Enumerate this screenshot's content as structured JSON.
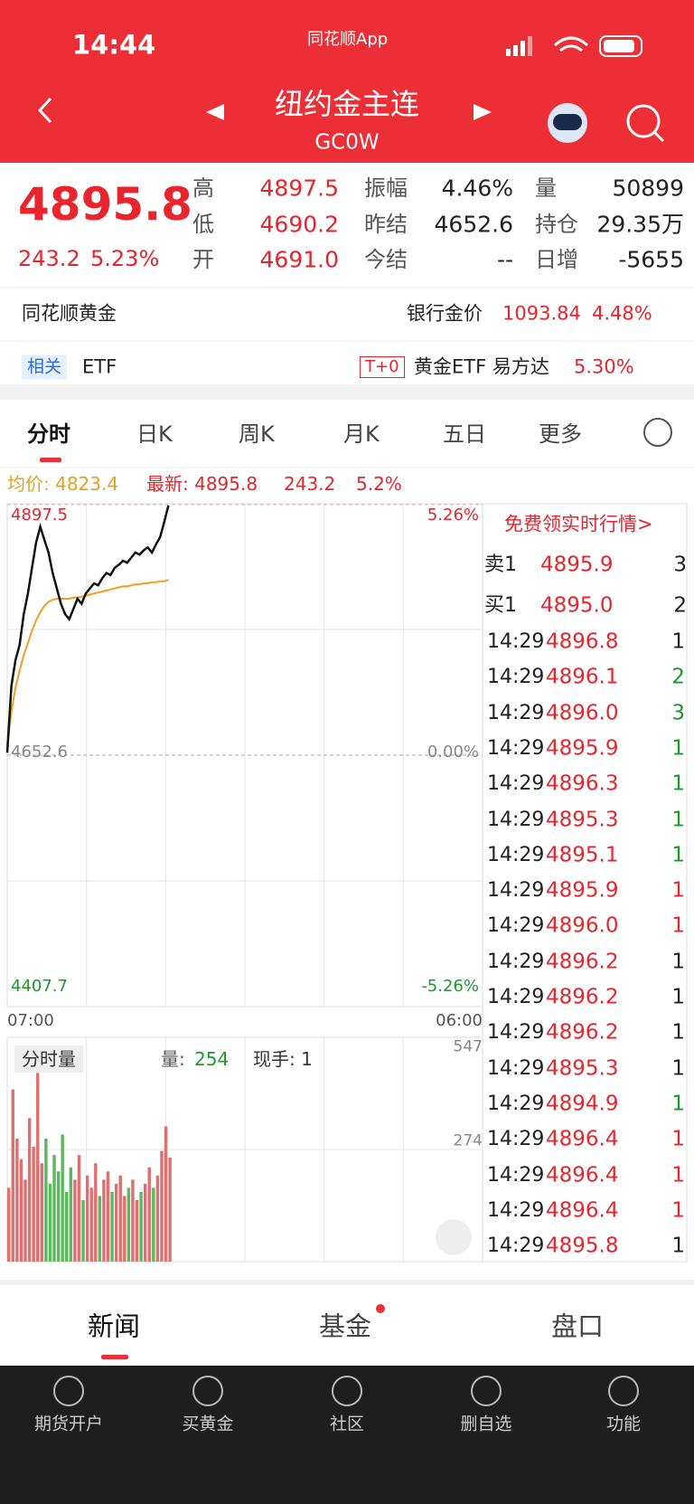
{
  "status_bar": {
    "time": "14:44",
    "app": "同花顺App"
  },
  "header": {
    "title": "纽约金主连",
    "code": "GC0W"
  },
  "quote": {
    "price": "4895.8",
    "change": "243.2",
    "change_pct": "5.23%",
    "stats": [
      [
        {
          "label": "高",
          "value": "4897.5",
          "color": "#e8242c"
        },
        {
          "label": "振幅",
          "value": "4.46%",
          "color": "#222222"
        },
        {
          "label": "量",
          "value": "50899",
          "color": "#222222"
        }
      ],
      [
        {
          "label": "低",
          "value": "4690.2",
          "color": "#e8242c"
        },
        {
          "label": "昨结",
          "value": "4652.6",
          "color": "#222222"
        },
        {
          "label": "持仓",
          "value": "29.35万",
          "color": "#222222"
        }
      ],
      [
        {
          "label": "开",
          "value": "4691.0",
          "color": "#e8242c"
        },
        {
          "label": "今结",
          "value": "--",
          "color": "#222222"
        },
        {
          "label": "日增",
          "value": "-5655",
          "color": "#222222"
        }
      ]
    ]
  },
  "bank_row": {
    "left": "同花顺黄金",
    "label": "银行金价",
    "price": "1093.84",
    "pct": "4.48%"
  },
  "etf_row": {
    "tag": "相关",
    "label": "ETF",
    "badge": "T+0",
    "name": "黄金ETF 易方达",
    "pct": "5.30%"
  },
  "tabs": [
    "分时",
    "日K",
    "周K",
    "月K",
    "五日",
    "更多"
  ],
  "chart_header": {
    "avg": "均价: 4823.4",
    "latest": "最新: 4895.8",
    "change": "243.2",
    "pct": "5.2%"
  },
  "intraday": {
    "top": "4897.5",
    "mid": "4652.6",
    "bottom": "4407.7",
    "top_pct": "5.26%",
    "mid_pct": "0.00%",
    "bottom_pct": "-5.26%",
    "start": "07:00",
    "end": "06:00",
    "ylim": [
      4407.7,
      4897.5
    ],
    "xlim": [
      0,
      23
    ],
    "x": [
      0,
      0.2,
      0.4,
      0.6,
      0.8,
      1,
      1.2,
      1.4,
      1.6,
      1.8,
      2,
      2.2,
      2.4,
      2.6,
      2.8,
      3,
      3.2,
      3.4,
      3.6,
      3.8,
      4,
      4.2,
      4.4,
      4.6,
      4.8,
      5,
      5.2,
      5.4,
      5.6,
      5.8,
      6,
      6.2,
      6.4,
      6.6,
      6.8,
      7,
      7.2,
      7.4,
      7.6,
      7.8
    ],
    "prices": [
      4655,
      4720,
      4745,
      4760,
      4790,
      4810,
      4835,
      4860,
      4875,
      4862,
      4850,
      4830,
      4815,
      4800,
      4790,
      4785,
      4795,
      4805,
      4800,
      4810,
      4815,
      4820,
      4818,
      4825,
      4830,
      4828,
      4835,
      4838,
      4842,
      4840,
      4845,
      4850,
      4848,
      4852,
      4855,
      4850,
      4858,
      4865,
      4880,
      4895.8
    ],
    "avg": [
      4660,
      4695,
      4718,
      4735,
      4750,
      4762,
      4774,
      4784,
      4792,
      4798,
      4802,
      4804,
      4805,
      4805,
      4805,
      4805,
      4806,
      4806,
      4807,
      4808,
      4809,
      4810,
      4811,
      4812,
      4813,
      4814,
      4815,
      4816,
      4817,
      4817,
      4818,
      4819,
      4819,
      4820,
      4820,
      4821,
      4821,
      4822,
      4822,
      4823.4
    ],
    "volume": [
      180,
      420,
      300,
      250,
      200,
      350,
      280,
      460,
      240,
      300,
      190,
      260,
      220,
      310,
      170,
      230,
      200,
      260,
      150,
      210,
      180,
      240,
      160,
      200,
      220,
      170,
      190,
      210,
      160,
      180,
      200,
      150,
      170,
      190,
      230,
      180,
      210,
      270,
      330,
      254
    ],
    "vol_ylim": [
      0,
      547
    ],
    "vol_top": "547",
    "vol_mid": "274",
    "vol_title": "分时量",
    "vol_label": "量:",
    "vol_value": "254",
    "hand": "现手: 1"
  },
  "order_book": {
    "promo": "免费领实时行情>",
    "ask": {
      "label": "卖1",
      "price": "4895.9",
      "vol": "3"
    },
    "bid": {
      "label": "买1",
      "price": "4895.0",
      "vol": "2"
    },
    "trades": [
      {
        "time": "14:29",
        "price": "4896.8",
        "vol": "1",
        "color": "#222222"
      },
      {
        "time": "14:29",
        "price": "4896.1",
        "vol": "2",
        "color": "#1a9a2a"
      },
      {
        "time": "14:29",
        "price": "4896.0",
        "vol": "3",
        "color": "#1a9a2a"
      },
      {
        "time": "14:29",
        "price": "4895.9",
        "vol": "1",
        "color": "#1a9a2a"
      },
      {
        "time": "14:29",
        "price": "4896.3",
        "vol": "1",
        "color": "#1a9a2a"
      },
      {
        "time": "14:29",
        "price": "4895.3",
        "vol": "1",
        "color": "#1a9a2a"
      },
      {
        "time": "14:29",
        "price": "4895.1",
        "vol": "1",
        "color": "#1a9a2a"
      },
      {
        "time": "14:29",
        "price": "4895.9",
        "vol": "1",
        "color": "#e8242c"
      },
      {
        "time": "14:29",
        "price": "4896.0",
        "vol": "1",
        "color": "#e8242c"
      },
      {
        "time": "14:29",
        "price": "4896.2",
        "vol": "1",
        "color": "#222222"
      },
      {
        "time": "14:29",
        "price": "4896.2",
        "vol": "1",
        "color": "#222222"
      },
      {
        "time": "14:29",
        "price": "4896.2",
        "vol": "1",
        "color": "#222222"
      },
      {
        "time": "14:29",
        "price": "4895.3",
        "vol": "1",
        "color": "#222222"
      },
      {
        "time": "14:29",
        "price": "4894.9",
        "vol": "1",
        "color": "#1a9a2a"
      },
      {
        "time": "14:29",
        "price": "4896.4",
        "vol": "1",
        "color": "#e8242c"
      },
      {
        "time": "14:29",
        "price": "4896.4",
        "vol": "1",
        "color": "#e8242c"
      },
      {
        "time": "14:29",
        "price": "4896.4",
        "vol": "1",
        "color": "#e8242c"
      },
      {
        "time": "14:29",
        "price": "4895.8",
        "vol": "1",
        "color": "#222222"
      }
    ]
  },
  "bottom_tabs": [
    "新闻",
    "基金",
    "盘口"
  ],
  "nav": [
    "期货开户",
    "买黄金",
    "社区",
    "删自选",
    "功能"
  ]
}
